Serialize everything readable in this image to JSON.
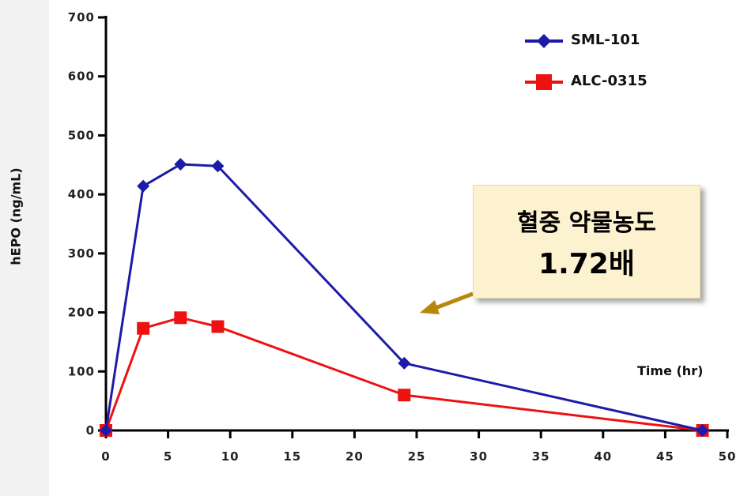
{
  "chart_data": {
    "type": "line",
    "xlabel": "Time (hr)",
    "ylabel": "hEPO (ng/mL)",
    "xlim": [
      0,
      50
    ],
    "ylim": [
      0,
      700
    ],
    "x_ticks": [
      0,
      5,
      10,
      15,
      20,
      25,
      30,
      35,
      40,
      45,
      50
    ],
    "y_ticks": [
      0,
      100,
      200,
      300,
      400,
      500,
      600,
      700
    ],
    "x_tick_labels": [
      "0",
      "5",
      "10",
      "15",
      "20",
      "25",
      "30",
      "35",
      "40",
      "45",
      "50"
    ],
    "y_tick_labels": [
      "0",
      "100",
      "200",
      "300",
      "400",
      "500",
      "600",
      "700"
    ],
    "grid": false,
    "legend_position": "top-right",
    "series": [
      {
        "name": "SML-101",
        "color": "#1c1ca8",
        "marker": "diamond",
        "points": [
          [
            0,
            0
          ],
          [
            3,
            414
          ],
          [
            6,
            451
          ],
          [
            9,
            448
          ],
          [
            24,
            114
          ],
          [
            48,
            0
          ]
        ]
      },
      {
        "name": "ALC-0315",
        "color": "#ee1111",
        "marker": "square",
        "points": [
          [
            0,
            0
          ],
          [
            3,
            173
          ],
          [
            6,
            191
          ],
          [
            9,
            176
          ],
          [
            24,
            60
          ],
          [
            48,
            0
          ]
        ]
      }
    ],
    "annotation": {
      "line1": "혈중 약물농도",
      "line2": "1.72배",
      "arrow_color": "#b8860b"
    }
  }
}
